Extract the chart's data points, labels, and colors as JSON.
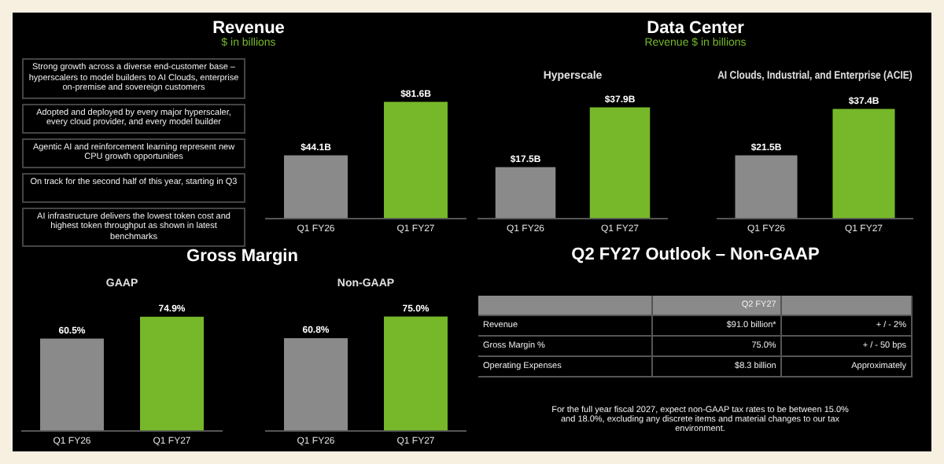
{
  "chart_data": [
    {
      "type": "other",
      "title": "Revenue",
      "subtitle": "$ in billions",
      "annotations": [
        "Strong growth across a diverse end-customer base – hyperscalers to model builders to AI Clouds, enterprise on-premise and sovereign customers",
        "Adopted and deployed by every major hyperscaler, every cloud provider, and every model builder",
        "Agentic AI and reinforcement learning represent new CPU growth opportunities",
        "On track for the second half of this year, starting in Q3",
        "AI infrastructure delivers the lowest token cost and highest token throughput as shown in latest benchmarks"
      ]
    },
    {
      "type": "bar",
      "categories": [
        "Q1 FY26",
        "Q1 FY27"
      ],
      "values": [
        44.1,
        81.6
      ],
      "colors": [
        "#8a8a8a",
        "#76b82a"
      ],
      "value_labels": [
        "$44.1B",
        "$81.6B"
      ],
      "tick_labels": "x"
    },
    {
      "type": "other",
      "title": "Data Center",
      "subtitle": "Revenue $ in billions"
    },
    {
      "type": "bar",
      "title": "Hyperscale",
      "categories": [
        "Q1 FY26",
        "Q1 FY27"
      ],
      "values": [
        17.5,
        37.9
      ],
      "colors": [
        "#8a8a8a",
        "#76b82a"
      ],
      "value_labels": [
        "$17.5B",
        "$37.9B"
      ],
      "tick_labels": "x"
    },
    {
      "type": "bar",
      "title": "AI Clouds, Industrial, and Enterprise (ACIE)",
      "categories": [
        "Q1 FY26",
        "Q1 FY27"
      ],
      "values": [
        21.5,
        37.4
      ],
      "colors": [
        "#8a8a8a",
        "#76b82a"
      ],
      "value_labels": [
        "$21.5B",
        "$37.4B"
      ],
      "tick_labels": "x"
    },
    {
      "type": "other",
      "title": "Gross Margin"
    },
    {
      "type": "bar",
      "title": "GAAP",
      "categories": [
        "Q1 FY26",
        "Q1 FY27"
      ],
      "values": [
        60.5,
        74.9
      ],
      "colors": [
        "#8a8a8a",
        "#76b82a"
      ],
      "value_labels": [
        "60.5%",
        "74.9%"
      ],
      "tick_labels": "x"
    },
    {
      "type": "bar",
      "title": "Non-GAAP",
      "categories": [
        "Q1 FY26",
        "Q1 FY27"
      ],
      "values": [
        60.8,
        75.0
      ],
      "colors": [
        "#8a8a8a",
        "#76b82a"
      ],
      "value_labels": [
        "60.8%",
        "75.0%"
      ],
      "tick_labels": "x"
    },
    {
      "type": "other",
      "title": "Q2 FY27 Outlook – Non-GAAP",
      "annotations": [
        "Q2 FY27",
        "Revenue",
        "$91.0 billion*",
        "+ / - 2%",
        "Gross Margin %",
        "75.0%",
        "+ / - 50 bps",
        "Operating Expenses",
        "$8.3 billion",
        "Approximately",
        "For the full year fiscal 2027, expect non-GAAP tax rates to be between 15.0% and 18.0%, excluding any discrete items and material changes to our tax environment."
      ]
    }
  ]
}
